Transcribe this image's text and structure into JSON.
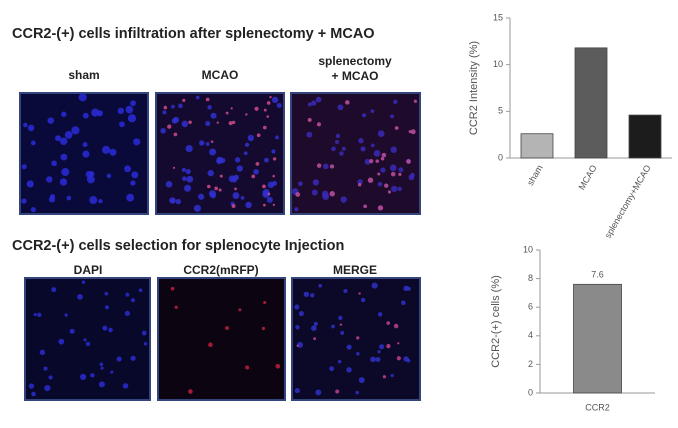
{
  "figure": {
    "top_heading": "CCR2-(+) cells infiltration after splenectomy + MCAO",
    "top_panels": [
      [
        "sham"
      ],
      [
        "MCAO"
      ],
      [
        "splenectomy",
        "+ MCAO"
      ]
    ],
    "bottom_heading": "CCR2-(+) cells selection for splenocyte Injection",
    "bottom_panels": [
      "DAPI",
      "CCR2(mRFP)",
      "MERGE"
    ]
  },
  "chart_data": [
    {
      "type": "bar",
      "y_label": "CCR2 Intensity (%)",
      "categories": [
        "sham",
        "MCAO",
        "splenectomy+MCAO"
      ],
      "values": [
        2.6,
        11.8,
        4.6
      ],
      "colors": [
        "#b4b4b4",
        "#5c5c5c",
        "#1c1c1c"
      ],
      "ylim": [
        0,
        15
      ],
      "yticks": [
        0,
        5,
        10,
        15
      ]
    },
    {
      "type": "bar",
      "y_label": "CCR2-(+) cells (%)",
      "categories": [
        "CCR2"
      ],
      "values": [
        7.6
      ],
      "value_labels": [
        "7.6"
      ],
      "color": "#8a8a8a",
      "ylim": [
        0,
        10
      ],
      "yticks": [
        0,
        2,
        4,
        6,
        8,
        10
      ]
    }
  ]
}
